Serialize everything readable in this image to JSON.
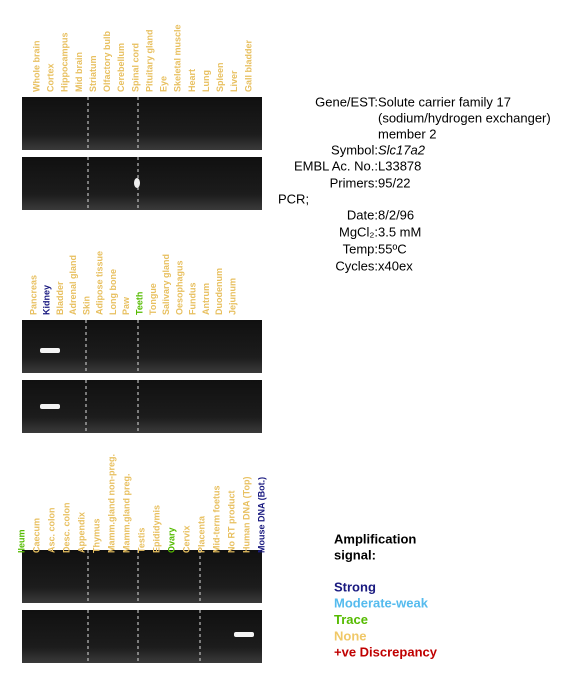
{
  "panels": [
    {
      "lanes": [
        {
          "label": "Whole brain",
          "color": "#e8c060"
        },
        {
          "label": "Cortex",
          "color": "#e8c060"
        },
        {
          "label": "Hippocampus",
          "color": "#e8c060"
        },
        {
          "label": "Mid brain",
          "color": "#e8c060"
        },
        {
          "label": "Striatum",
          "color": "#e8c060"
        },
        {
          "label": "Olfactory bulb",
          "color": "#e8c060"
        },
        {
          "label": "Cerebellum",
          "color": "#e8c060"
        },
        {
          "label": "Spinal cord",
          "color": "#e8c060"
        },
        {
          "label": "Pituitary gland",
          "color": "#e8c060"
        },
        {
          "label": "Eye",
          "color": "#e8c060"
        },
        {
          "label": "Skeletal muscle",
          "color": "#e8c060"
        },
        {
          "label": "Heart",
          "color": "#e8c060"
        },
        {
          "label": "Lung",
          "color": "#e8c060"
        },
        {
          "label": "Spleen",
          "color": "#e8c060"
        },
        {
          "label": "Liver",
          "color": "#e8c060"
        },
        {
          "label": "Gall bladder",
          "color": "#e8c060"
        }
      ]
    },
    {
      "lanes": [
        {
          "label": "Pancreas",
          "color": "#e8c060"
        },
        {
          "label": "Kidney",
          "color": "#1a1a80"
        },
        {
          "label": "Bladder",
          "color": "#e8c060"
        },
        {
          "label": "Adrenal gland",
          "color": "#e8c060"
        },
        {
          "label": "Skin",
          "color": "#e8c060"
        },
        {
          "label": "Adipose tissue",
          "color": "#e8c060"
        },
        {
          "label": "Long bone",
          "color": "#e8c060"
        },
        {
          "label": "Paw",
          "color": "#e8c060"
        },
        {
          "label": "Teeth",
          "color": "#55bb00"
        },
        {
          "label": "Tongue",
          "color": "#e8c060"
        },
        {
          "label": "Salivary gland",
          "color": "#e8c060"
        },
        {
          "label": "Oesophagus",
          "color": "#e8c060"
        },
        {
          "label": "Fundus",
          "color": "#e8c060"
        },
        {
          "label": "Antrum",
          "color": "#e8c060"
        },
        {
          "label": "Duodenum",
          "color": "#e8c060"
        },
        {
          "label": "Jejunum",
          "color": "#e8c060"
        }
      ]
    },
    {
      "lanes": [
        {
          "label": "Ileum",
          "color": "#55bb00"
        },
        {
          "label": "Caecum",
          "color": "#e8c060"
        },
        {
          "label": "Asc. colon",
          "color": "#e8c060"
        },
        {
          "label": "Desc. colon",
          "color": "#e8c060"
        },
        {
          "label": "Appendix",
          "color": "#e8c060"
        },
        {
          "label": "Thymus",
          "color": "#e8c060"
        },
        {
          "label": "Mamm.gland non-preg.",
          "color": "#e8c060"
        },
        {
          "label": "Mamm.gland preg.",
          "color": "#e8c060"
        },
        {
          "label": "Testis",
          "color": "#e8c060"
        },
        {
          "label": "Epididymis",
          "color": "#e8c060"
        },
        {
          "label": "Ovary",
          "color": "#55bb00"
        },
        {
          "label": "Cervix",
          "color": "#e8c060"
        },
        {
          "label": "Placenta",
          "color": "#e8c060"
        },
        {
          "label": "Mid-term foetus",
          "color": "#e8c060"
        },
        {
          "label": "No RT product",
          "color": "#e8c060"
        },
        {
          "label": "Human DNA (Top)",
          "color": "#e8c060"
        },
        {
          "label": "Mouse DNA (Bot.)",
          "color": "#1a1a80"
        }
      ]
    }
  ],
  "info": {
    "gene": {
      "key": "Gene/EST:",
      "value": [
        "Solute carrier family 17",
        "(sodium/hydrogen exchanger)",
        "member 2"
      ]
    },
    "symbol": {
      "key": "Symbol:",
      "value": "Slc17a2"
    },
    "embl": {
      "key": "EMBL Ac. No.:",
      "value": "L33878"
    },
    "primers": {
      "key": "Primers:",
      "value": "95/22"
    },
    "pcr": "PCR;",
    "date": {
      "key": "Date:",
      "value": "8/2/96"
    },
    "mgcl": {
      "key": "MgCl₂:",
      "value": "3.5 mM"
    },
    "temp": {
      "key": "Temp:",
      "value": "55ºC"
    },
    "cycles": {
      "key": "Cycles:",
      "value": "x40ex"
    }
  },
  "legend": {
    "title": [
      "Amplification",
      "signal:"
    ],
    "items": [
      {
        "label": "Strong",
        "color": "#1a1a80"
      },
      {
        "label": "Moderate-weak",
        "color": "#55bbee"
      },
      {
        "label": "Trace",
        "color": "#55bb00"
      },
      {
        "label": "None",
        "color": "#f0c868"
      },
      {
        "label": "+ve Discrepancy",
        "color": "#c00000"
      }
    ]
  }
}
